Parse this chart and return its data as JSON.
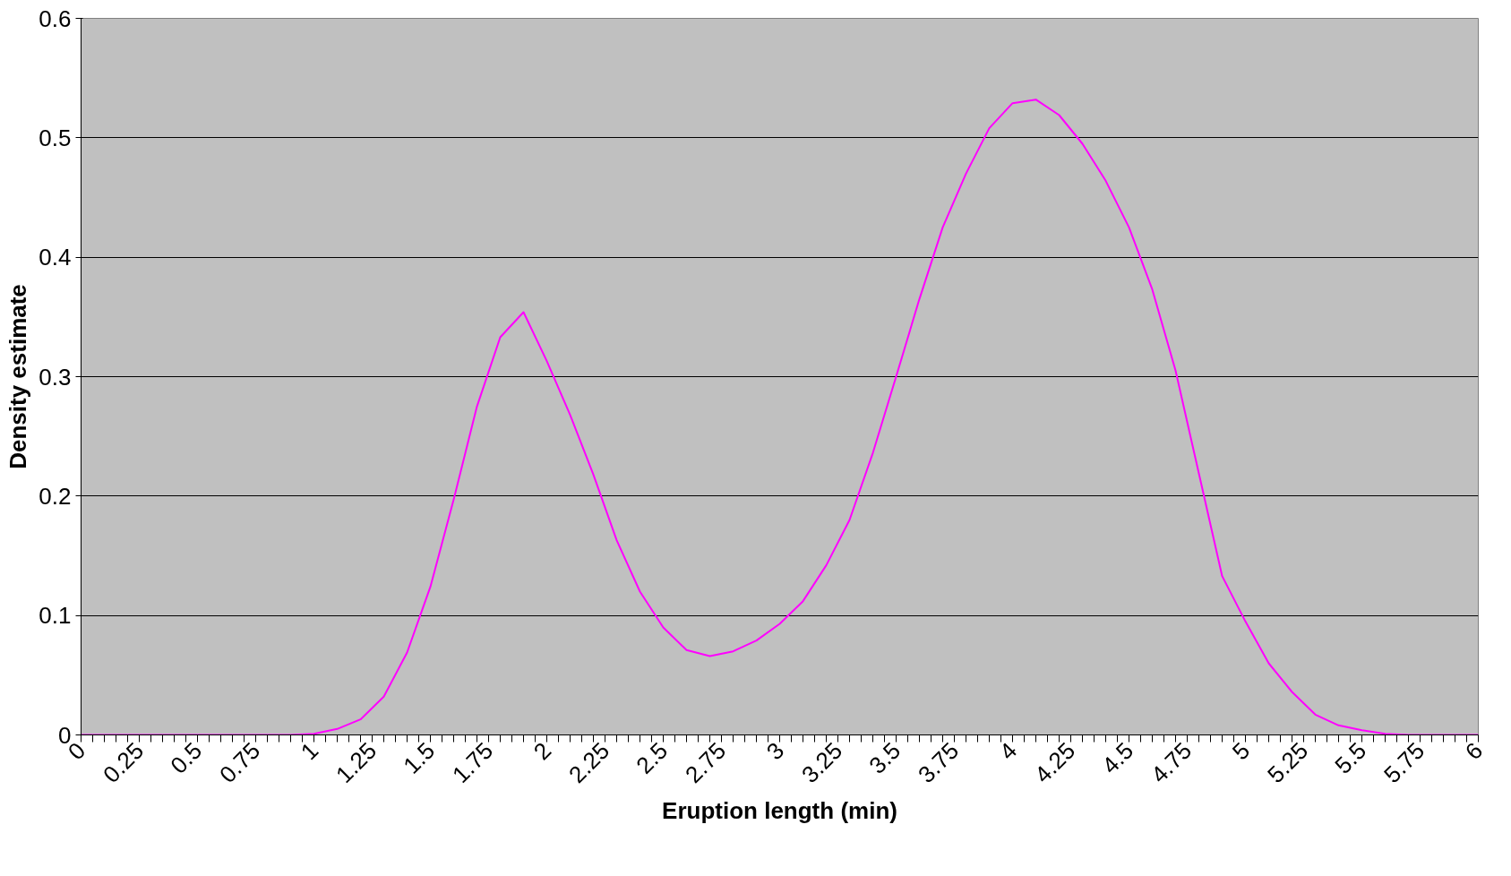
{
  "chart_data": {
    "type": "line",
    "xlabel": "Eruption length (min)",
    "ylabel": "Density estimate",
    "x": [
      0,
      0.1,
      0.2,
      0.3,
      0.4,
      0.5,
      0.6,
      0.7,
      0.8,
      0.9,
      1.0,
      1.1,
      1.2,
      1.3,
      1.4,
      1.5,
      1.6,
      1.7,
      1.8,
      1.9,
      2.0,
      2.1,
      2.2,
      2.3,
      2.4,
      2.5,
      2.6,
      2.7,
      2.8,
      2.9,
      3.0,
      3.1,
      3.2,
      3.3,
      3.4,
      3.5,
      3.6,
      3.7,
      3.8,
      3.9,
      4.0,
      4.1,
      4.2,
      4.3,
      4.4,
      4.5,
      4.6,
      4.7,
      4.8,
      4.9,
      5.0,
      5.1,
      5.2,
      5.3,
      5.4,
      5.5,
      5.6,
      5.7,
      5.8,
      5.9,
      6.0
    ],
    "series": [
      {
        "color": "#ff00ff",
        "values": [
          0,
          0,
          0,
          0,
          0,
          0,
          0,
          0,
          0,
          0,
          0.001,
          0.005,
          0.013,
          0.032,
          0.069,
          0.124,
          0.197,
          0.275,
          0.333,
          0.354,
          0.313,
          0.268,
          0.218,
          0.163,
          0.12,
          0.09,
          0.071,
          0.066,
          0.07,
          0.079,
          0.093,
          0.112,
          0.142,
          0.18,
          0.236,
          0.3,
          0.365,
          0.425,
          0.47,
          0.508,
          0.529,
          0.532,
          0.519,
          0.495,
          0.464,
          0.425,
          0.373,
          0.305,
          0.219,
          0.133,
          0.095,
          0.06,
          0.036,
          0.017,
          0.008,
          0.004,
          0.001,
          0,
          0,
          0,
          0
        ]
      }
    ],
    "xlim": [
      0,
      6
    ],
    "ylim": [
      0,
      0.6
    ],
    "xticks": [
      0,
      0.25,
      0.5,
      0.75,
      1,
      1.25,
      1.5,
      1.75,
      2,
      2.25,
      2.5,
      2.75,
      3,
      3.25,
      3.5,
      3.75,
      4,
      4.25,
      4.5,
      4.75,
      5,
      5.25,
      5.5,
      5.75,
      6
    ],
    "yticks": [
      0,
      0.1,
      0.2,
      0.3,
      0.4,
      0.5,
      0.6
    ],
    "grid": "y",
    "marker": "none",
    "line_style": "solid"
  }
}
